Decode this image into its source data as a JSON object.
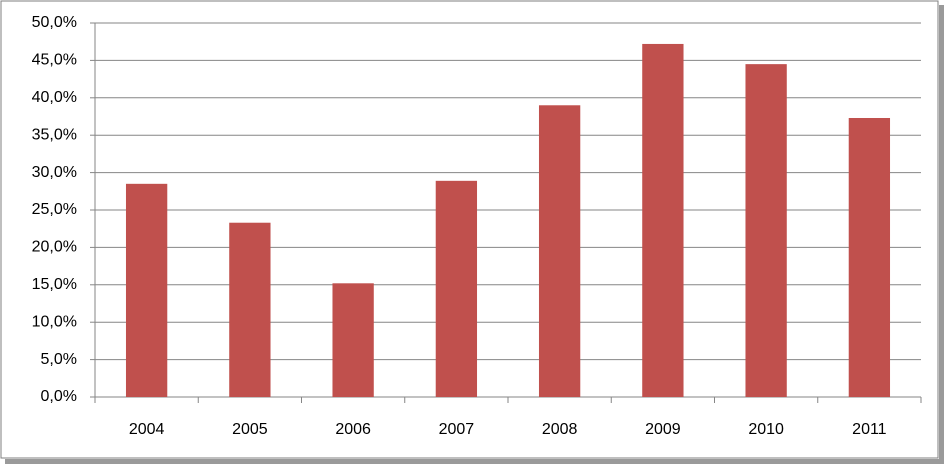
{
  "chart_data": {
    "type": "bar",
    "categories": [
      "2004",
      "2005",
      "2006",
      "2007",
      "2008",
      "2009",
      "2010",
      "2011"
    ],
    "values": [
      28.5,
      23.3,
      15.2,
      28.9,
      39.0,
      47.2,
      44.5,
      37.3
    ],
    "color": "#c0504d",
    "ylim": [
      0,
      50
    ],
    "yticks": [
      {
        "value": 0,
        "label": "0,0%"
      },
      {
        "value": 5,
        "label": "5,0%"
      },
      {
        "value": 10,
        "label": "10,0%"
      },
      {
        "value": 15,
        "label": "15,0%"
      },
      {
        "value": 20,
        "label": "20,0%"
      },
      {
        "value": 25,
        "label": "25,0%"
      },
      {
        "value": 30,
        "label": "30,0%"
      },
      {
        "value": 35,
        "label": "35,0%"
      },
      {
        "value": 40,
        "label": "40,0%"
      },
      {
        "value": 45,
        "label": "45,0%"
      },
      {
        "value": 50,
        "label": "50,0%"
      }
    ],
    "grid": true
  }
}
